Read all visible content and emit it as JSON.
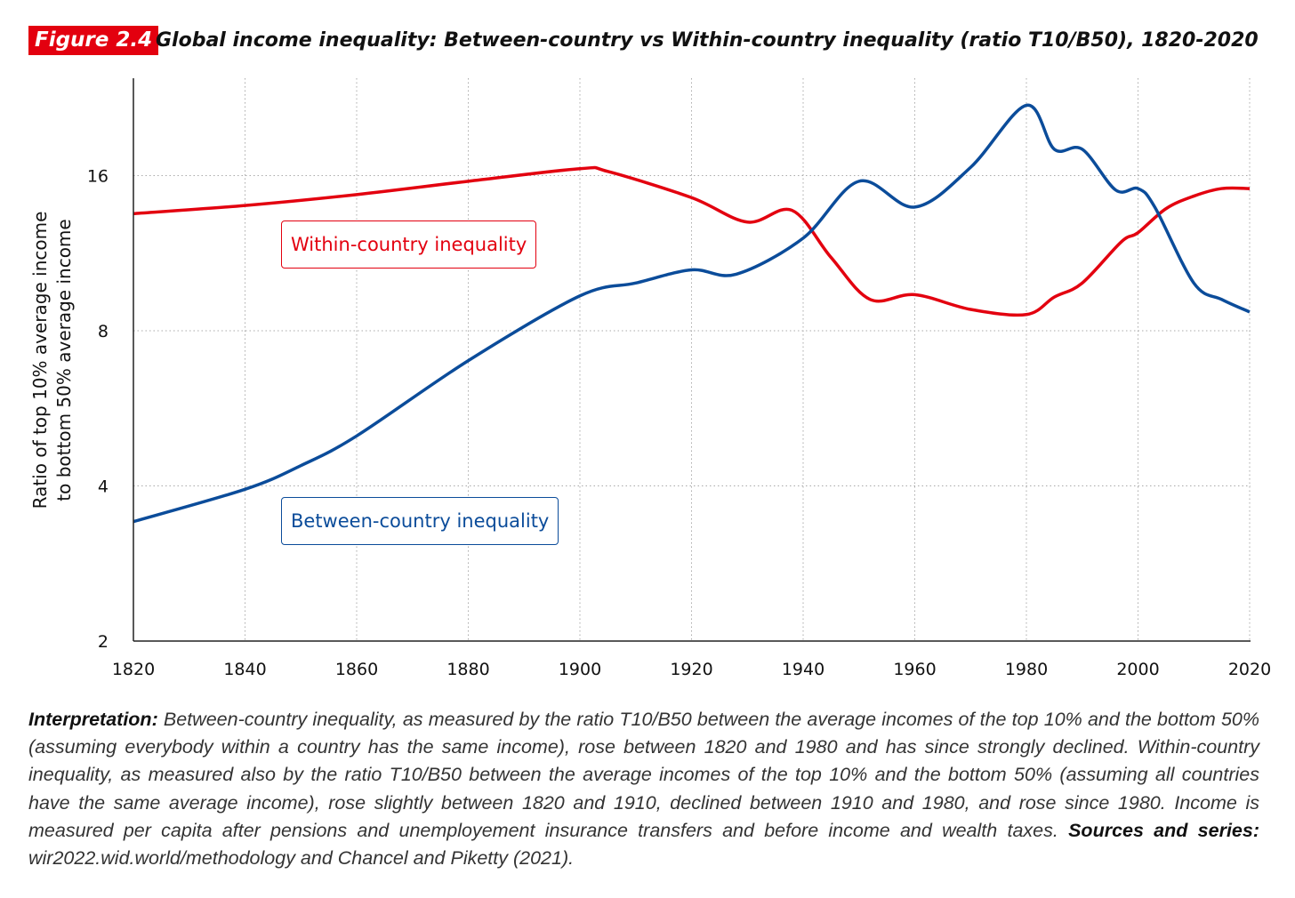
{
  "figure_label": "Figure 2.4",
  "title": "Global income inequality: Between-country vs Within-country inequality (ratio T10/B50), 1820-2020",
  "chart_data": {
    "type": "line",
    "title": "Global income inequality: Between-country vs Within-country inequality (ratio T10/B50), 1820-2020",
    "xlabel": "",
    "ylabel_lines": [
      "Ratio of top 10% average income",
      "to bottom 50% average income"
    ],
    "yscale": "log2",
    "xlim": [
      1820,
      2020
    ],
    "ylim": [
      2,
      24.8
    ],
    "x_ticks": [
      "1820",
      "1840",
      "1860",
      "1880",
      "1900",
      "1920",
      "1940",
      "1960",
      "1980",
      "2000",
      "2020"
    ],
    "y_ticks": [
      "2",
      "4",
      "8",
      "16"
    ],
    "grid": true,
    "series": [
      {
        "name": "Within-country inequality",
        "color": "#e3000f",
        "x": [
          1820,
          1840,
          1860,
          1880,
          1900,
          1905,
          1920,
          1930,
          1938,
          1945,
          1952,
          1960,
          1970,
          1980,
          1985,
          1990,
          1997,
          2000,
          2005,
          2010,
          2015,
          2020
        ],
        "y": [
          13.5,
          14.0,
          14.7,
          15.6,
          16.5,
          16.3,
          14.5,
          13.0,
          13.7,
          11.1,
          9.2,
          9.4,
          8.8,
          8.6,
          9.3,
          9.9,
          11.9,
          12.4,
          13.8,
          14.6,
          15.1,
          15.1
        ]
      },
      {
        "name": "Between-country inequality",
        "color": "#0b4c9a",
        "x": [
          1820,
          1840,
          1850,
          1860,
          1880,
          1900,
          1910,
          1920,
          1928,
          1940,
          1950,
          1960,
          1970,
          1980,
          1985,
          1990,
          1996,
          2000,
          2003,
          2010,
          2015,
          2020
        ],
        "y": [
          3.41,
          3.94,
          4.38,
          5.0,
          7.0,
          9.35,
          9.9,
          10.5,
          10.3,
          12.1,
          15.6,
          13.9,
          16.6,
          21.9,
          18.0,
          18.0,
          15.0,
          15.1,
          13.9,
          9.9,
          9.2,
          8.7
        ]
      }
    ]
  },
  "interpretation": {
    "label": "Interpretation:",
    "text": " Between-country inequality, as measured by the ratio T10/B50 between the average incomes of the top 10% and the bottom 50% (assuming everybody within a country has the same income), rose between 1820 and 1980 and has since strongly declined. Within-country inequality, as measured also by the ratio T10/B50 between the average incomes of the top 10% and the bottom 50% (assuming all countries have the same average income), rose slightly between 1820 and 1910, declined between 1910 and 1980, and rose since 1980. Income is measured per capita after pensions and unemployement insurance transfers and before income and wealth taxes. ",
    "sources_label": "Sources and series:",
    "sources_text": " wir2022.wid.world/methodology and Chancel and Piketty (2021)."
  }
}
